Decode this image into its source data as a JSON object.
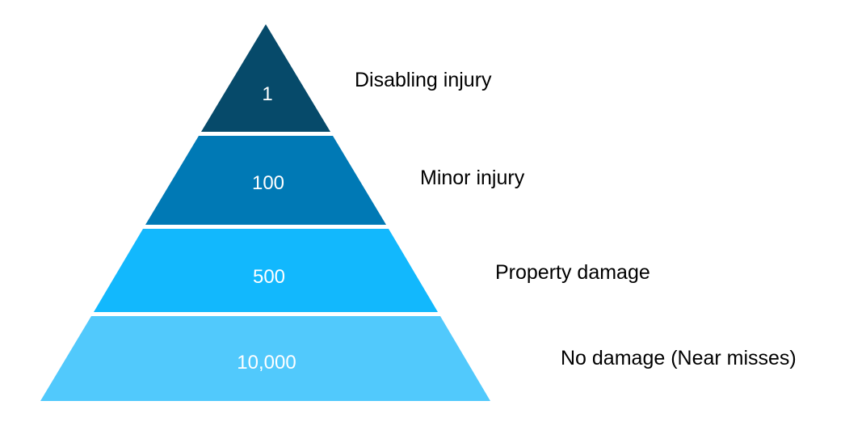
{
  "pyramid": {
    "tiers": [
      {
        "value": "1",
        "label": "Disabling injury",
        "color": "#064A6A"
      },
      {
        "value": "100",
        "label": "Minor injury",
        "color": "#0079B5"
      },
      {
        "value": "500",
        "label": "Property damage",
        "color": "#12B8FD"
      },
      {
        "value": "10,000",
        "label": "No damage (Near misses)",
        "color": "#51C9FC"
      }
    ]
  }
}
